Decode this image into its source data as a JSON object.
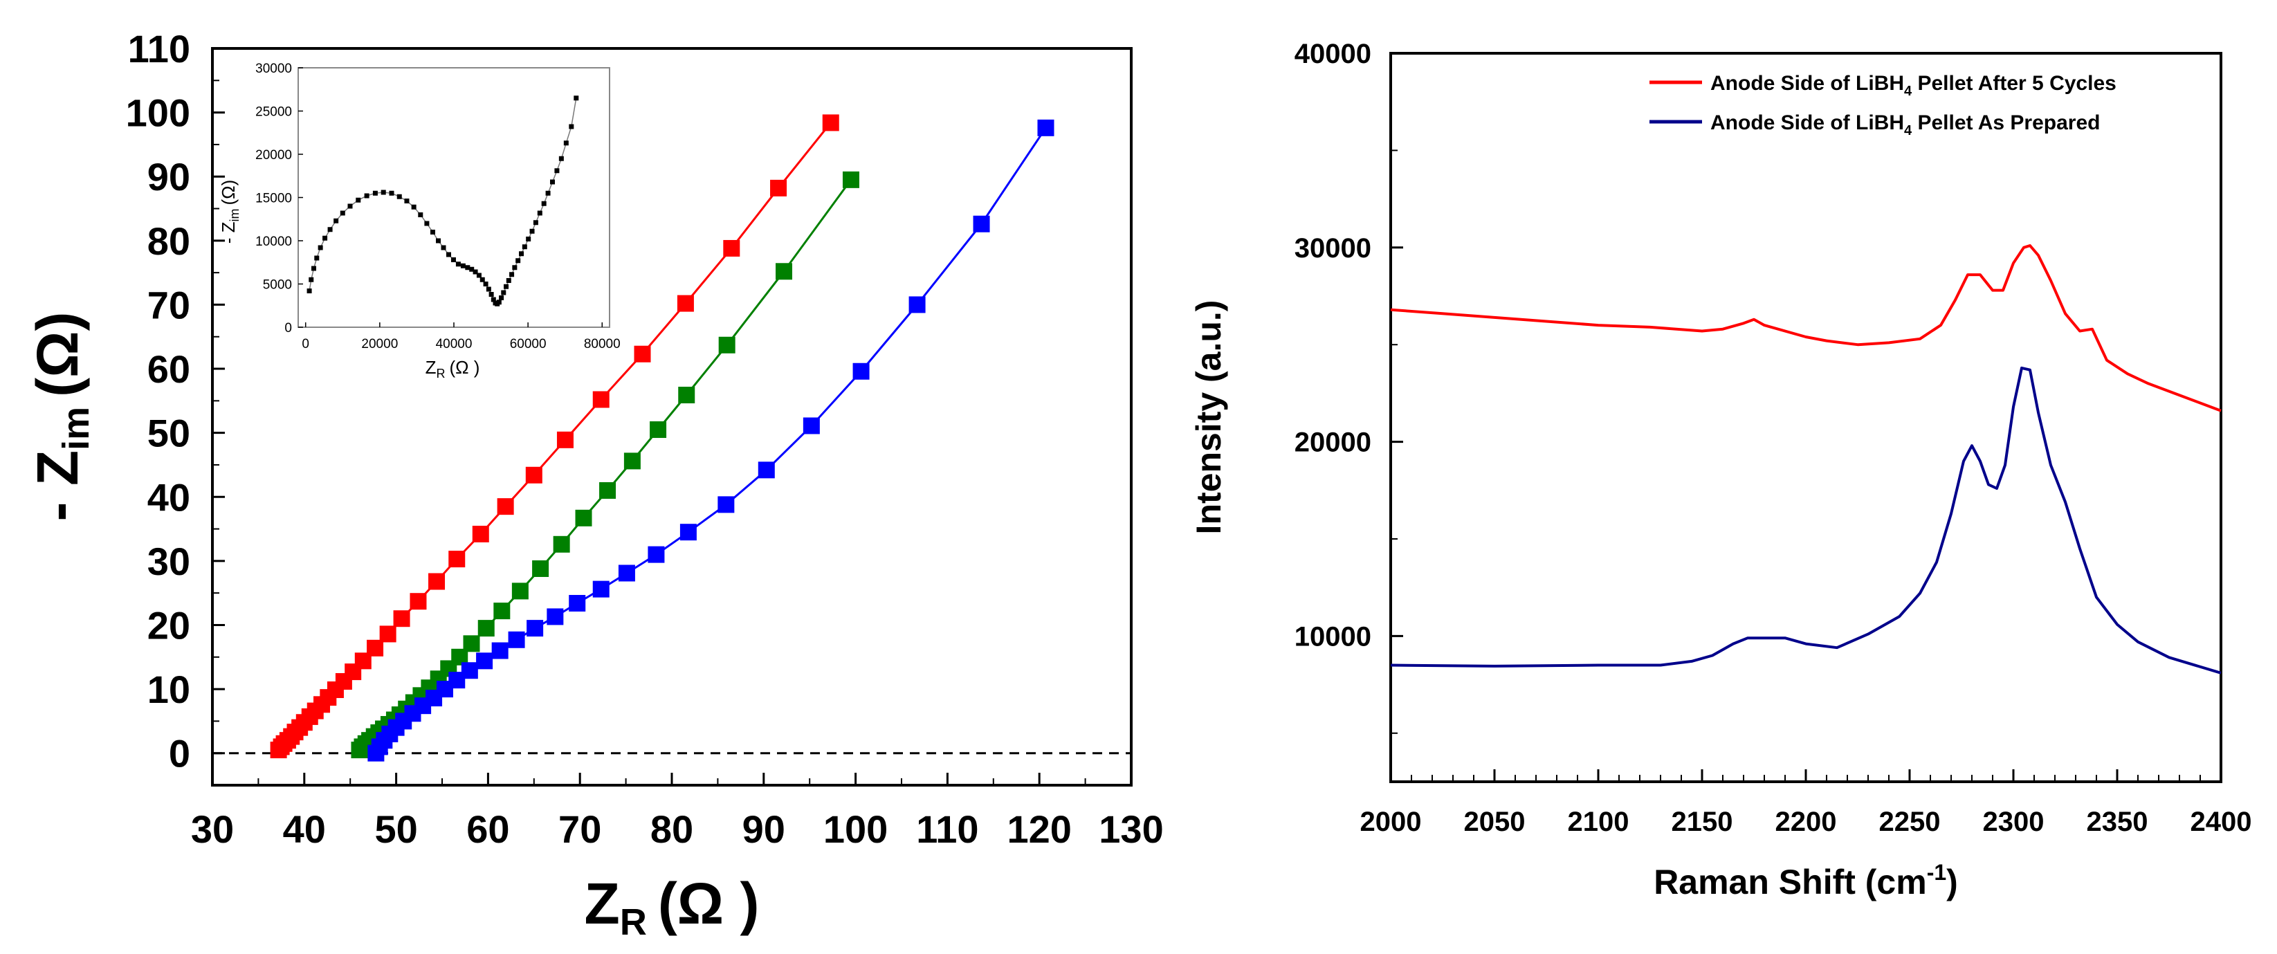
{
  "chart_data": [
    {
      "type": "scatter",
      "panel": "left",
      "xlabel_main": "Z",
      "xlabel_sub": "R",
      "xlabel_unit": "(Ω )",
      "ylabel_prefix": "- Z",
      "ylabel_sub": "im",
      "ylabel_unit": "(Ω)",
      "xlim": [
        30,
        130
      ],
      "ylim": [
        -5,
        110
      ],
      "xticks": [
        30,
        40,
        50,
        60,
        70,
        80,
        90,
        100,
        110,
        120,
        130
      ],
      "yticks": [
        0,
        10,
        20,
        30,
        40,
        50,
        60,
        70,
        80,
        90,
        100,
        110
      ],
      "reference_line_y": 0,
      "series": [
        {
          "name": "red",
          "color": "#ff0000",
          "x": [
            37.2,
            37.5,
            37.8,
            38.2,
            38.6,
            39.0,
            39.5,
            40.0,
            40.6,
            41.2,
            41.9,
            42.6,
            43.4,
            44.3,
            45.3,
            46.4,
            47.7,
            49.1,
            50.6,
            52.4,
            54.4,
            56.6,
            59.2,
            61.9,
            65.0,
            68.4,
            72.3,
            76.8,
            81.5,
            86.5,
            91.6,
            97.3
          ],
          "y": [
            0.5,
            1.0,
            1.5,
            2.0,
            2.6,
            3.3,
            4.0,
            4.8,
            5.7,
            6.6,
            7.6,
            8.7,
            9.9,
            11.2,
            12.7,
            14.4,
            16.4,
            18.6,
            21.0,
            23.7,
            26.8,
            30.3,
            34.2,
            38.5,
            43.4,
            48.9,
            55.2,
            62.3,
            70.2,
            78.8,
            88.2,
            98.4
          ]
        },
        {
          "name": "green",
          "color": "#008000",
          "x": [
            46.0,
            46.3,
            46.7,
            47.1,
            47.6,
            48.1,
            48.6,
            49.2,
            49.8,
            50.4,
            51.1,
            51.9,
            52.7,
            53.6,
            54.6,
            55.7,
            56.9,
            58.2,
            59.8,
            61.5,
            63.5,
            65.7,
            68.0,
            70.4,
            73.0,
            75.7,
            78.5,
            81.6,
            86.0,
            92.2,
            99.5
          ],
          "y": [
            0.5,
            1.0,
            1.5,
            2.0,
            2.6,
            3.2,
            3.8,
            4.5,
            5.2,
            6.0,
            6.9,
            7.9,
            9.0,
            10.2,
            11.6,
            13.2,
            15.0,
            17.1,
            19.5,
            22.2,
            25.3,
            28.8,
            32.6,
            36.7,
            41.0,
            45.6,
            50.5,
            55.9,
            63.7,
            75.2,
            89.5
          ]
        },
        {
          "name": "blue",
          "color": "#0000ff",
          "x": [
            47.8,
            48.2,
            48.7,
            49.3,
            50.0,
            50.8,
            51.8,
            52.9,
            54.1,
            55.3,
            56.6,
            58.0,
            59.6,
            61.3,
            63.1,
            65.1,
            67.3,
            69.7,
            72.3,
            75.1,
            78.3,
            81.8,
            85.9,
            90.3,
            95.2,
            100.6,
            106.7,
            113.7,
            120.7
          ],
          "y": [
            0.0,
            1.0,
            2.0,
            3.0,
            4.0,
            5.0,
            6.2,
            7.4,
            8.6,
            10.0,
            11.4,
            12.9,
            14.4,
            16.0,
            17.7,
            19.5,
            21.3,
            23.4,
            25.6,
            28.1,
            31.0,
            34.5,
            38.8,
            44.2,
            51.1,
            59.6,
            70.0,
            82.6,
            97.6
          ]
        }
      ],
      "inset": {
        "type": "scatter",
        "xlabel_main": "Z",
        "xlabel_sub": "R",
        "xlabel_unit": "(Ω )",
        "ylabel_prefix": "- Z",
        "ylabel_sub": "im",
        "ylabel_unit": "(Ω)",
        "xlim": [
          -2000,
          82000
        ],
        "ylim": [
          0,
          30000
        ],
        "xticks": [
          0,
          20000,
          40000,
          60000,
          80000
        ],
        "yticks": [
          0,
          5000,
          10000,
          15000,
          20000,
          25000,
          30000
        ],
        "series": [
          {
            "name": "inset",
            "color": "#000000",
            "x": [
              1000,
              1500,
              2200,
              3000,
              4000,
              5200,
              6600,
              8200,
              10000,
              12000,
              14200,
              16500,
              18800,
              21000,
              23200,
              25300,
              27300,
              29200,
              31000,
              32700,
              34300,
              35800,
              37200,
              38600,
              39900,
              41200,
              42500,
              43700,
              44800,
              45800,
              46800,
              47700,
              48600,
              49400,
              50100,
              50700,
              51200,
              51700,
              52200,
              52800,
              53400,
              54100,
              54800,
              55600,
              56400,
              57300,
              58200,
              59100,
              60100,
              61100,
              62100,
              63200,
              64300,
              65400,
              66600,
              67800,
              69000,
              70300,
              71700,
              73000
            ],
            "y": [
              4200,
              5500,
              6800,
              8000,
              9200,
              10300,
              11300,
              12300,
              13200,
              14000,
              14700,
              15200,
              15500,
              15600,
              15500,
              15100,
              14600,
              13900,
              13000,
              12000,
              11000,
              10000,
              9200,
              8400,
              7800,
              7300,
              7100,
              6900,
              6700,
              6400,
              6000,
              5500,
              5000,
              4400,
              3800,
              3200,
              2800,
              2700,
              2900,
              3400,
              4000,
              4700,
              5400,
              6100,
              6900,
              7700,
              8500,
              9300,
              10200,
              11100,
              12100,
              13200,
              14300,
              15500,
              16800,
              18100,
              19500,
              21300,
              23200,
              26500
            ]
          }
        ]
      }
    },
    {
      "type": "line",
      "panel": "right",
      "xlabel": "Raman Shift (cm",
      "xlabel_sup": "-1",
      "xlabel_close": ")",
      "ylabel": "Intensity (a.u.)",
      "xlim": [
        2000,
        2400
      ],
      "ylim": [
        2500,
        40000
      ],
      "xticks": [
        2000,
        2050,
        2100,
        2150,
        2200,
        2250,
        2300,
        2350,
        2400
      ],
      "yticks": [
        10000,
        20000,
        30000,
        40000
      ],
      "legend_position": "top-right",
      "series": [
        {
          "name": "after5",
          "label_parts": [
            "Anode Side of LiBH",
            "4",
            " Pellet After 5 Cycles"
          ],
          "color": "#ff0000",
          "x": [
            2000,
            2025,
            2050,
            2075,
            2100,
            2125,
            2150,
            2160,
            2170,
            2175,
            2180,
            2200,
            2210,
            2225,
            2240,
            2255,
            2265,
            2272,
            2278,
            2284,
            2290,
            2295,
            2300,
            2305,
            2308,
            2312,
            2318,
            2325,
            2332,
            2338,
            2345,
            2355,
            2365,
            2380,
            2400
          ],
          "y": [
            26800,
            26600,
            26400,
            26200,
            26000,
            25900,
            25700,
            25800,
            26100,
            26300,
            26000,
            25400,
            25200,
            25000,
            25100,
            25300,
            26000,
            27300,
            28600,
            28600,
            27800,
            27800,
            29200,
            30000,
            30100,
            29600,
            28300,
            26600,
            25700,
            25800,
            24200,
            23500,
            23000,
            22400,
            21600
          ]
        },
        {
          "name": "asprepared",
          "label_parts": [
            "Anode Side of LiBH",
            "4",
            " Pellet As Prepared"
          ],
          "color": "#00008b",
          "x": [
            2000,
            2050,
            2100,
            2130,
            2145,
            2155,
            2165,
            2172,
            2180,
            2190,
            2200,
            2215,
            2230,
            2245,
            2255,
            2263,
            2270,
            2276,
            2280,
            2284,
            2288,
            2292,
            2296,
            2300,
            2304,
            2308,
            2312,
            2318,
            2325,
            2332,
            2340,
            2350,
            2360,
            2375,
            2400
          ],
          "y": [
            8500,
            8450,
            8500,
            8500,
            8700,
            9000,
            9600,
            9900,
            9900,
            9900,
            9600,
            9400,
            10100,
            11000,
            12200,
            13800,
            16300,
            19000,
            19800,
            19000,
            17800,
            17600,
            18800,
            21800,
            23800,
            23700,
            21500,
            18800,
            16900,
            14500,
            12000,
            10600,
            9700,
            8900,
            8100
          ]
        }
      ]
    }
  ]
}
